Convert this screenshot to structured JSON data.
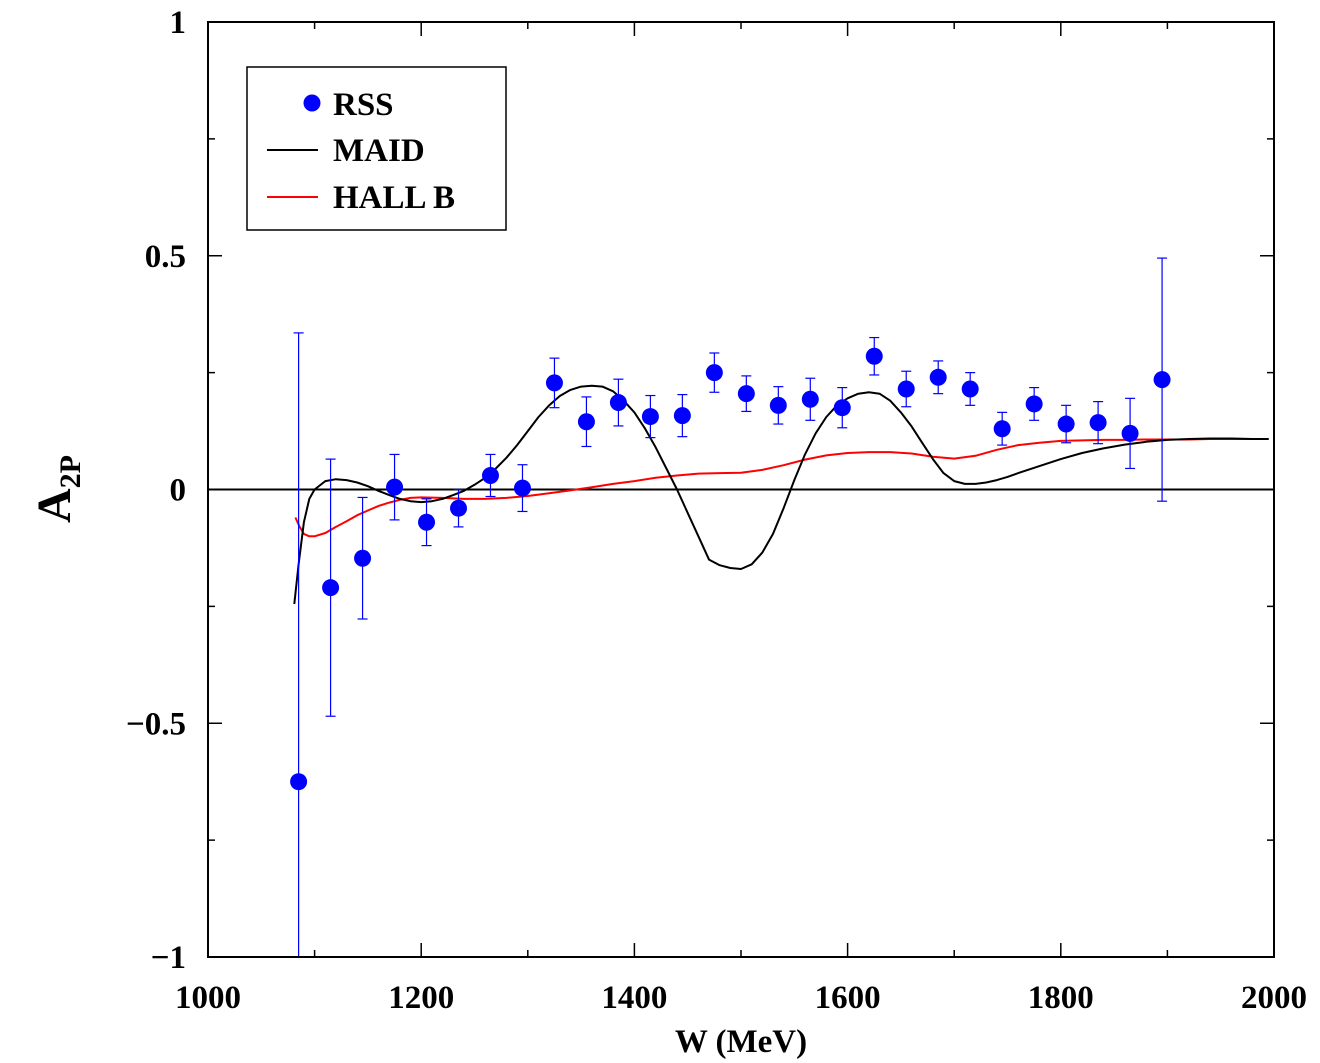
{
  "chart_data": {
    "type": "scatter",
    "title": "",
    "xlabel": "W (MeV)",
    "ylabel_main": "A",
    "ylabel_sub": "2P",
    "xlim": [
      1000,
      2000
    ],
    "ylim": [
      -1,
      1
    ],
    "xticks": [
      1000,
      1200,
      1400,
      1600,
      1800,
      2000
    ],
    "xtick_labels": [
      "1000",
      "1200",
      "1400",
      "1600",
      "1800",
      "2000"
    ],
    "yticks": [
      -1,
      -0.5,
      0,
      0.5,
      1
    ],
    "ytick_labels": [
      "−1",
      "−0.5",
      "0",
      "0.5",
      "1"
    ],
    "zero_line": true,
    "grid": false,
    "legend_position": "top-left",
    "colors": {
      "rss": "#0000ff",
      "maid": "#000000",
      "hallb": "#ff0000"
    },
    "series": [
      {
        "name": "RSS",
        "kind": "points-with-errors",
        "points": [
          {
            "x": 1085,
            "y": -0.625,
            "err": 0.96
          },
          {
            "x": 1115,
            "y": -0.21,
            "err": 0.275
          },
          {
            "x": 1145,
            "y": -0.147,
            "err": 0.13
          },
          {
            "x": 1175,
            "y": 0.005,
            "err": 0.07
          },
          {
            "x": 1205,
            "y": -0.07,
            "err": 0.05
          },
          {
            "x": 1235,
            "y": -0.04,
            "err": 0.04
          },
          {
            "x": 1265,
            "y": 0.03,
            "err": 0.045
          },
          {
            "x": 1295,
            "y": 0.003,
            "err": 0.05
          },
          {
            "x": 1325,
            "y": 0.228,
            "err": 0.053
          },
          {
            "x": 1355,
            "y": 0.145,
            "err": 0.053
          },
          {
            "x": 1385,
            "y": 0.186,
            "err": 0.05
          },
          {
            "x": 1415,
            "y": 0.156,
            "err": 0.045
          },
          {
            "x": 1445,
            "y": 0.158,
            "err": 0.045
          },
          {
            "x": 1475,
            "y": 0.25,
            "err": 0.042
          },
          {
            "x": 1505,
            "y": 0.205,
            "err": 0.038
          },
          {
            "x": 1535,
            "y": 0.18,
            "err": 0.04
          },
          {
            "x": 1565,
            "y": 0.193,
            "err": 0.045
          },
          {
            "x": 1595,
            "y": 0.175,
            "err": 0.043
          },
          {
            "x": 1625,
            "y": 0.285,
            "err": 0.04
          },
          {
            "x": 1655,
            "y": 0.215,
            "err": 0.038
          },
          {
            "x": 1685,
            "y": 0.24,
            "err": 0.035
          },
          {
            "x": 1715,
            "y": 0.215,
            "err": 0.035
          },
          {
            "x": 1745,
            "y": 0.13,
            "err": 0.035
          },
          {
            "x": 1775,
            "y": 0.183,
            "err": 0.035
          },
          {
            "x": 1805,
            "y": 0.14,
            "err": 0.04
          },
          {
            "x": 1835,
            "y": 0.143,
            "err": 0.045
          },
          {
            "x": 1865,
            "y": 0.12,
            "err": 0.075
          },
          {
            "x": 1895,
            "y": 0.235,
            "err": 0.26
          }
        ]
      },
      {
        "name": "MAID",
        "kind": "line",
        "x": [
          1081,
          1085,
          1090,
          1095,
          1100,
          1110,
          1120,
          1130,
          1140,
          1150,
          1160,
          1170,
          1180,
          1190,
          1200,
          1210,
          1220,
          1230,
          1240,
          1250,
          1260,
          1270,
          1280,
          1290,
          1300,
          1310,
          1320,
          1330,
          1340,
          1350,
          1360,
          1370,
          1380,
          1390,
          1400,
          1410,
          1420,
          1430,
          1440,
          1450,
          1460,
          1470,
          1480,
          1490,
          1500,
          1510,
          1520,
          1530,
          1540,
          1550,
          1560,
          1570,
          1580,
          1590,
          1600,
          1610,
          1620,
          1630,
          1640,
          1650,
          1660,
          1670,
          1680,
          1690,
          1700,
          1710,
          1720,
          1730,
          1740,
          1750,
          1760,
          1780,
          1800,
          1820,
          1840,
          1860,
          1880,
          1900,
          1920,
          1940,
          1960,
          1980,
          1995
        ],
        "y": [
          -0.245,
          -0.16,
          -0.07,
          -0.02,
          0.0,
          0.018,
          0.022,
          0.02,
          0.015,
          0.007,
          -0.003,
          -0.012,
          -0.02,
          -0.025,
          -0.027,
          -0.025,
          -0.02,
          -0.012,
          -0.003,
          0.01,
          0.025,
          0.045,
          0.068,
          0.095,
          0.125,
          0.155,
          0.18,
          0.2,
          0.213,
          0.22,
          0.222,
          0.22,
          0.21,
          0.19,
          0.165,
          0.13,
          0.09,
          0.045,
          0.0,
          -0.05,
          -0.1,
          -0.15,
          -0.162,
          -0.168,
          -0.17,
          -0.16,
          -0.135,
          -0.095,
          -0.04,
          0.02,
          0.075,
          0.12,
          0.155,
          0.18,
          0.195,
          0.205,
          0.208,
          0.205,
          0.19,
          0.165,
          0.135,
          0.1,
          0.065,
          0.035,
          0.018,
          0.012,
          0.012,
          0.015,
          0.02,
          0.027,
          0.035,
          0.05,
          0.065,
          0.078,
          0.088,
          0.096,
          0.102,
          0.106,
          0.108,
          0.109,
          0.109,
          0.108,
          0.108
        ]
      },
      {
        "name": "HALL B",
        "kind": "line",
        "x": [
          1082,
          1086,
          1090,
          1095,
          1100,
          1110,
          1120,
          1130,
          1140,
          1150,
          1160,
          1170,
          1180,
          1190,
          1200,
          1220,
          1240,
          1260,
          1280,
          1300,
          1320,
          1340,
          1360,
          1380,
          1400,
          1420,
          1440,
          1460,
          1480,
          1500,
          1520,
          1540,
          1560,
          1580,
          1600,
          1620,
          1640,
          1660,
          1680,
          1700,
          1720,
          1740,
          1760,
          1780,
          1800,
          1820,
          1840,
          1860,
          1880,
          1900,
          1920,
          1940,
          1960,
          1980,
          1995
        ],
        "y": [
          -0.06,
          -0.08,
          -0.095,
          -0.1,
          -0.1,
          -0.093,
          -0.08,
          -0.068,
          -0.055,
          -0.045,
          -0.035,
          -0.028,
          -0.022,
          -0.018,
          -0.017,
          -0.018,
          -0.02,
          -0.02,
          -0.018,
          -0.014,
          -0.008,
          -0.002,
          0.005,
          0.012,
          0.018,
          0.025,
          0.03,
          0.034,
          0.035,
          0.036,
          0.042,
          0.052,
          0.064,
          0.073,
          0.078,
          0.08,
          0.08,
          0.077,
          0.07,
          0.066,
          0.072,
          0.085,
          0.095,
          0.1,
          0.104,
          0.105,
          0.106,
          0.106,
          0.107,
          0.107,
          0.107,
          0.108,
          0.108,
          0.108,
          0.108
        ]
      }
    ]
  }
}
